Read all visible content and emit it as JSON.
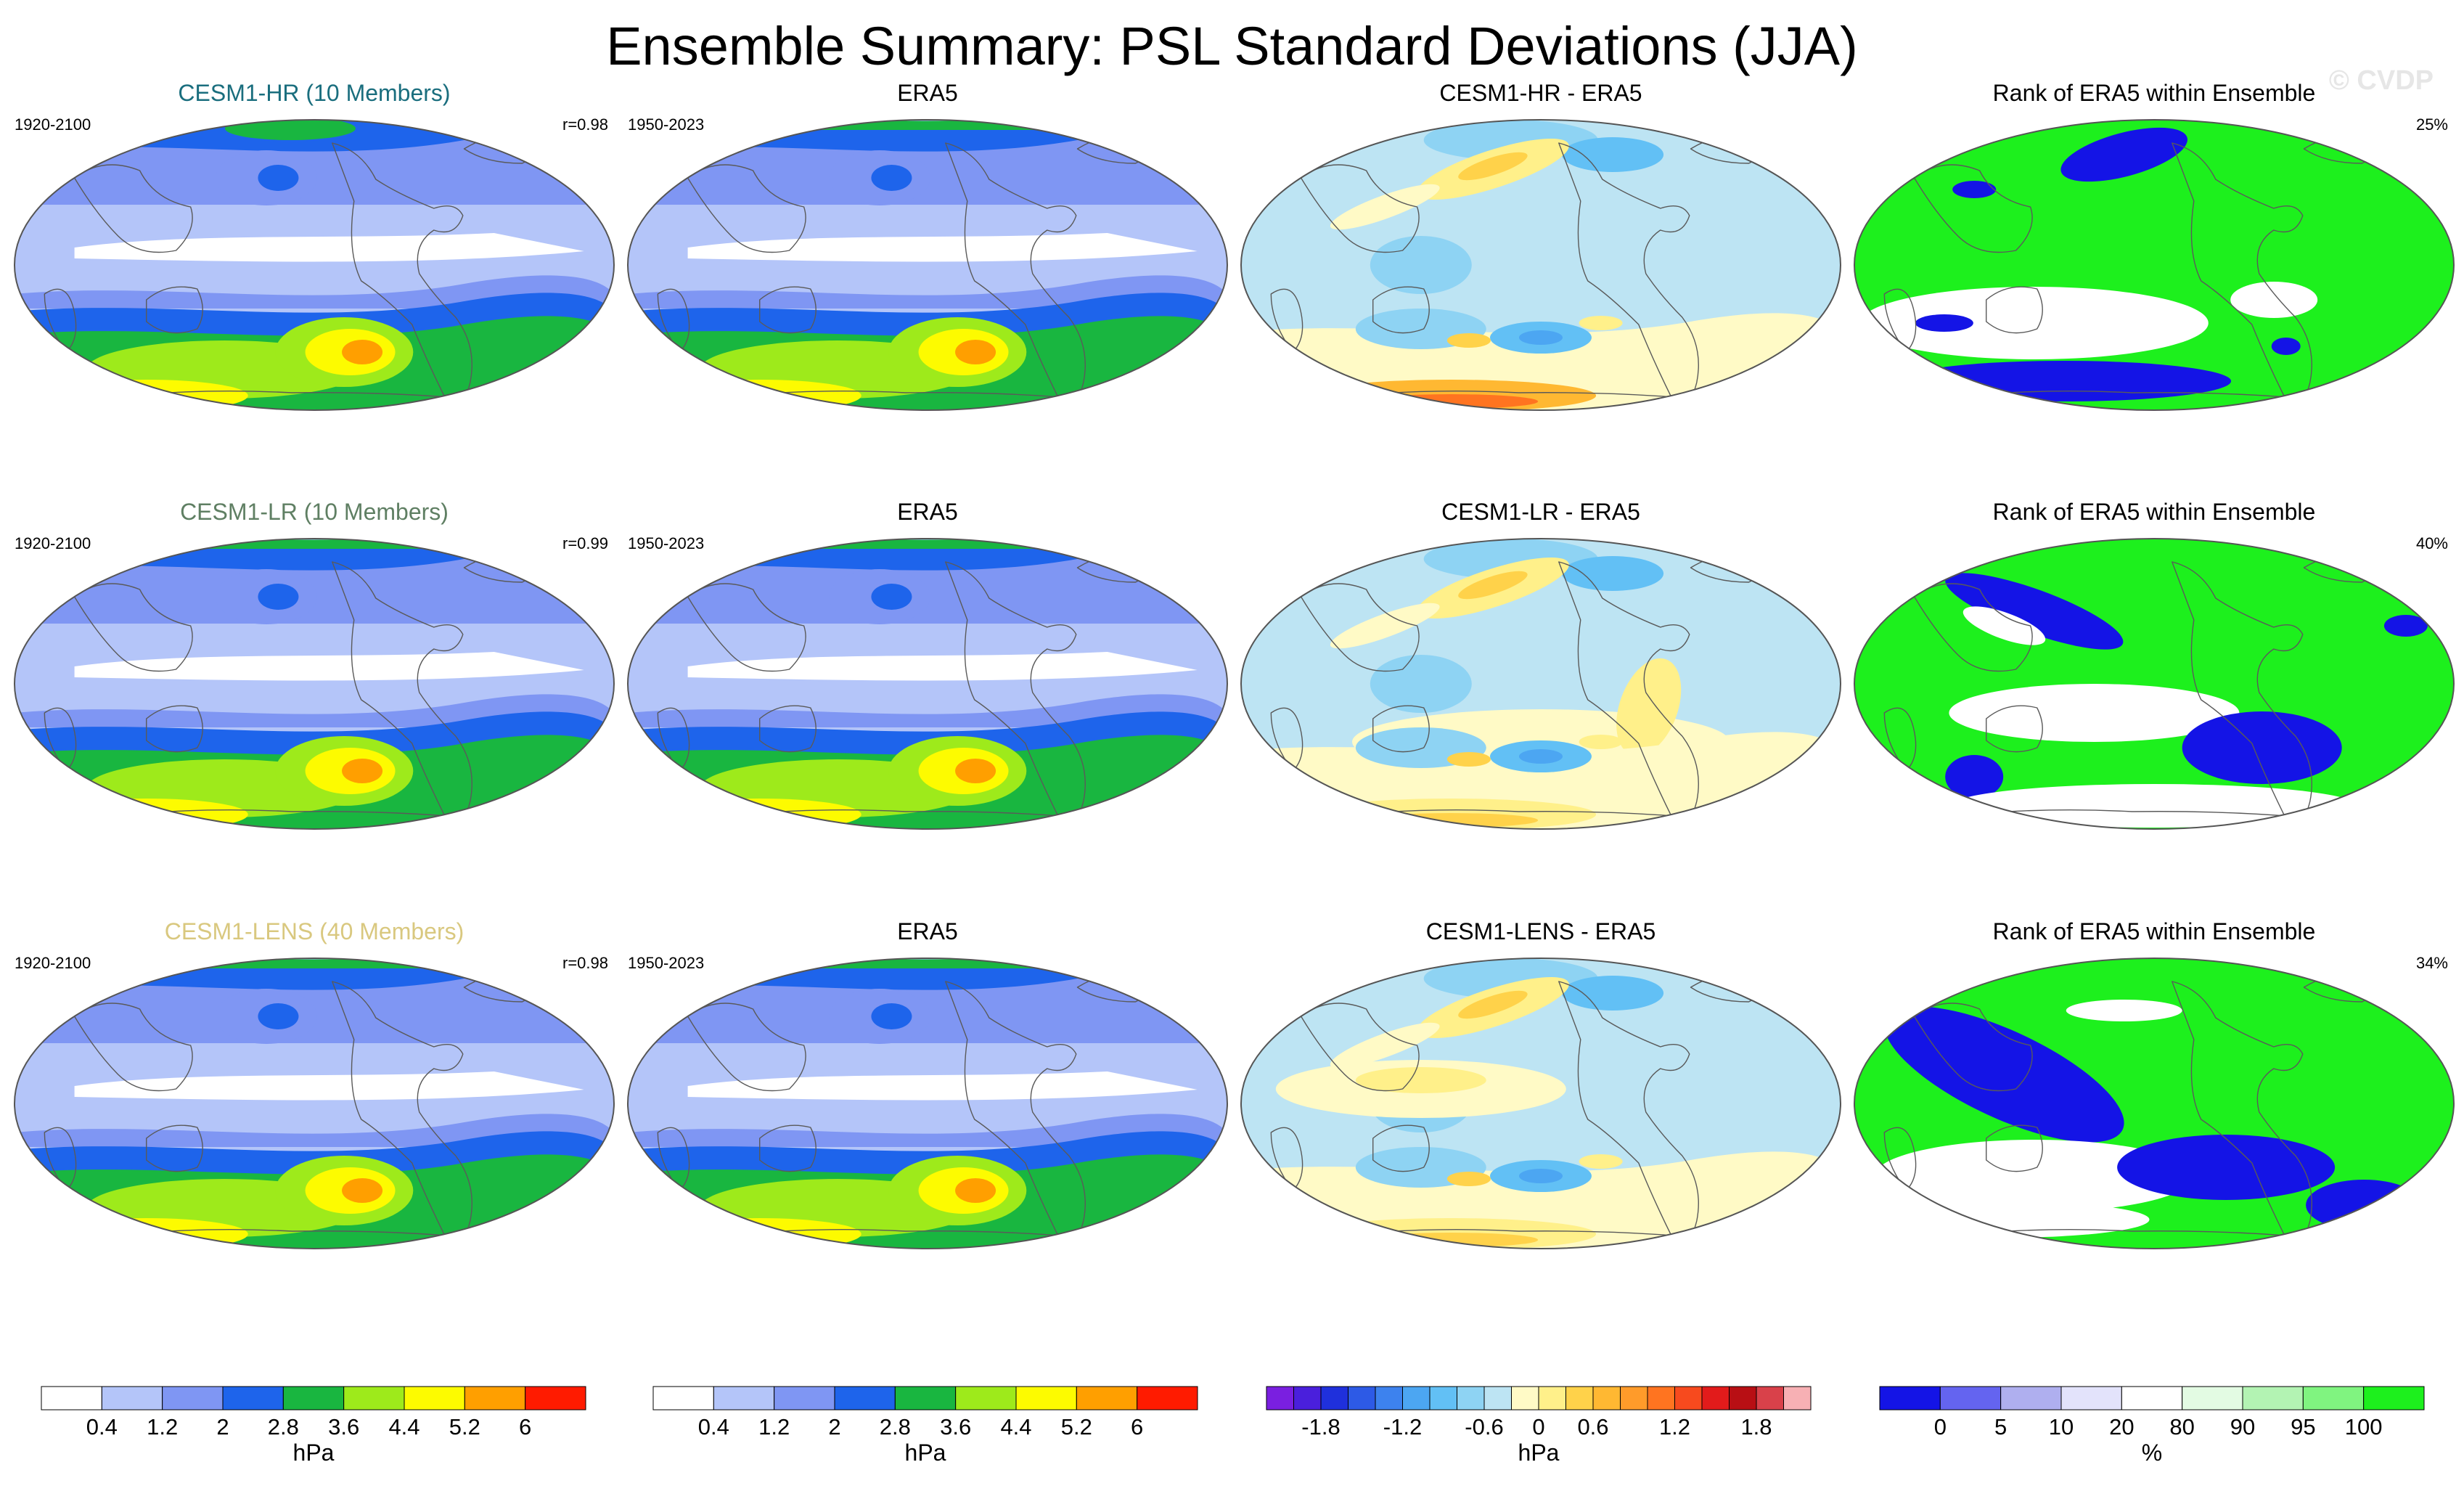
{
  "title": "Ensemble Summary: PSL Standard Deviations (JJA)",
  "copyright": "© CVDP",
  "rows": [
    {
      "model": {
        "label": "CESM1-HR (10 Members)",
        "color": "#1a6e7e",
        "years": "1920-2100",
        "r": "r=0.98"
      },
      "obs": {
        "label": "ERA5",
        "years": "1950-2023"
      },
      "diff": {
        "label": "CESM1-HR - ERA5"
      },
      "rank": {
        "label": "Rank of ERA5 within Ensemble",
        "pct": "25%"
      }
    },
    {
      "model": {
        "label": "CESM1-LR (10 Members)",
        "color": "#5f7f63",
        "years": "1920-2100",
        "r": "r=0.99"
      },
      "obs": {
        "label": "ERA5",
        "years": "1950-2023"
      },
      "diff": {
        "label": "CESM1-LR - ERA5"
      },
      "rank": {
        "label": "Rank of ERA5 within Ensemble",
        "pct": "40%"
      }
    },
    {
      "model": {
        "label": "CESM1-LENS (40 Members)",
        "color": "#d9c87f",
        "years": "1920-2100",
        "r": "r=0.98"
      },
      "obs": {
        "label": "ERA5",
        "years": "1950-2023"
      },
      "diff": {
        "label": "CESM1-LENS - ERA5"
      },
      "rank": {
        "label": "Rank of ERA5 within Ensemble",
        "pct": "34%"
      }
    }
  ],
  "colorbars": [
    {
      "name": "std",
      "unit": "hPa",
      "colors": [
        "#ffffff",
        "#b4c5f9",
        "#7f96f3",
        "#1e64eb",
        "#19b640",
        "#9eea1b",
        "#fdfb00",
        "#ff9f00",
        "#ff1b00"
      ],
      "labels": [
        "0.4",
        "1.2",
        "2",
        "2.8",
        "3.6",
        "4.4",
        "5.2",
        "6"
      ]
    },
    {
      "name": "std-obs",
      "unit": "hPa",
      "colors": [
        "#ffffff",
        "#b4c5f9",
        "#7f96f3",
        "#1e64eb",
        "#19b640",
        "#9eea1b",
        "#fdfb00",
        "#ff9f00",
        "#ff1b00"
      ],
      "labels": [
        "0.4",
        "1.2",
        "2",
        "2.8",
        "3.6",
        "4.4",
        "5.2",
        "6"
      ]
    },
    {
      "name": "diff",
      "unit": "hPa",
      "colors": [
        "#7a1fe0",
        "#4a1fdc",
        "#1f30dc",
        "#2d5ae6",
        "#3d82ee",
        "#4ca6f2",
        "#62c0f5",
        "#8ed3f3",
        "#bde4f3",
        "#fffac6",
        "#fff08a",
        "#ffd24a",
        "#ffb832",
        "#ff9b2a",
        "#ff7420",
        "#f74a1e",
        "#e21b1b",
        "#b80f14",
        "#d9414a",
        "#f7b0b4"
      ],
      "labels": [
        "-1.8",
        "-1.2",
        "-0.6",
        "0",
        "0.6",
        "1.2",
        "1.8"
      ],
      "label_index": [
        2,
        5,
        8,
        10,
        12,
        15,
        18
      ]
    },
    {
      "name": "rank",
      "unit": "%",
      "colors": [
        "#1414e6",
        "#6464f0",
        "#afafef",
        "#e3e3fb",
        "#ffffff",
        "#e3fbe3",
        "#b3f3b3",
        "#80f480",
        "#1df01d"
      ],
      "labels": [
        "0",
        "5",
        "10",
        "20",
        "80",
        "90",
        "95",
        "100"
      ]
    }
  ],
  "chart_data": [
    {
      "type": "heatmap",
      "panel": "CESM1-HR (10 Members)",
      "variable": "PSL standard deviation",
      "season": "JJA",
      "units": "hPa",
      "period": "1920-2100",
      "pattern_correlation": 0.98,
      "levels": [
        0.4,
        1.2,
        2,
        2.8,
        3.6,
        4.4,
        5.2,
        6
      ],
      "peak": "5.2-6 south of Australia (Southern Ocean)",
      "minimum": "<0.4 tropical band"
    },
    {
      "type": "heatmap",
      "panel": "ERA5",
      "variable": "PSL standard deviation",
      "season": "JJA",
      "units": "hPa",
      "period": "1950-2023",
      "levels": [
        0.4,
        1.2,
        2,
        2.8,
        3.6,
        4.4,
        5.2,
        6
      ],
      "peak": "5.2-6 south of Australia",
      "minimum": "<0.4 western tropical Pacific"
    },
    {
      "type": "heatmap",
      "panel": "CESM1-HR - ERA5",
      "units": "hPa",
      "levels": [
        -1.8,
        -1.2,
        -0.6,
        0,
        0.6,
        1.2,
        1.8
      ]
    },
    {
      "type": "heatmap",
      "panel": "Rank of ERA5 within Ensemble (CESM1-HR)",
      "units": "%",
      "rank_pct": 25,
      "levels": [
        0,
        5,
        10,
        20,
        80,
        90,
        95,
        100
      ]
    },
    {
      "type": "heatmap",
      "panel": "CESM1-LR (10 Members)",
      "units": "hPa",
      "period": "1920-2100",
      "pattern_correlation": 0.99,
      "levels": [
        0.4,
        1.2,
        2,
        2.8,
        3.6,
        4.4,
        5.2,
        6
      ]
    },
    {
      "type": "heatmap",
      "panel": "CESM1-LR - ERA5",
      "units": "hPa",
      "levels": [
        -1.8,
        -1.2,
        -0.6,
        0,
        0.6,
        1.2,
        1.8
      ]
    },
    {
      "type": "heatmap",
      "panel": "Rank of ERA5 within Ensemble (CESM1-LR)",
      "units": "%",
      "rank_pct": 40,
      "levels": [
        0,
        5,
        10,
        20,
        80,
        90,
        95,
        100
      ]
    },
    {
      "type": "heatmap",
      "panel": "CESM1-LENS (40 Members)",
      "units": "hPa",
      "period": "1920-2100",
      "pattern_correlation": 0.98,
      "levels": [
        0.4,
        1.2,
        2,
        2.8,
        3.6,
        4.4,
        5.2,
        6
      ]
    },
    {
      "type": "heatmap",
      "panel": "CESM1-LENS - ERA5",
      "units": "hPa",
      "levels": [
        -1.8,
        -1.2,
        -0.6,
        0,
        0.6,
        1.2,
        1.8
      ]
    },
    {
      "type": "heatmap",
      "panel": "Rank of ERA5 within Ensemble (CESM1-LENS)",
      "units": "%",
      "rank_pct": 34,
      "levels": [
        0,
        5,
        10,
        20,
        80,
        90,
        95,
        100
      ]
    }
  ]
}
